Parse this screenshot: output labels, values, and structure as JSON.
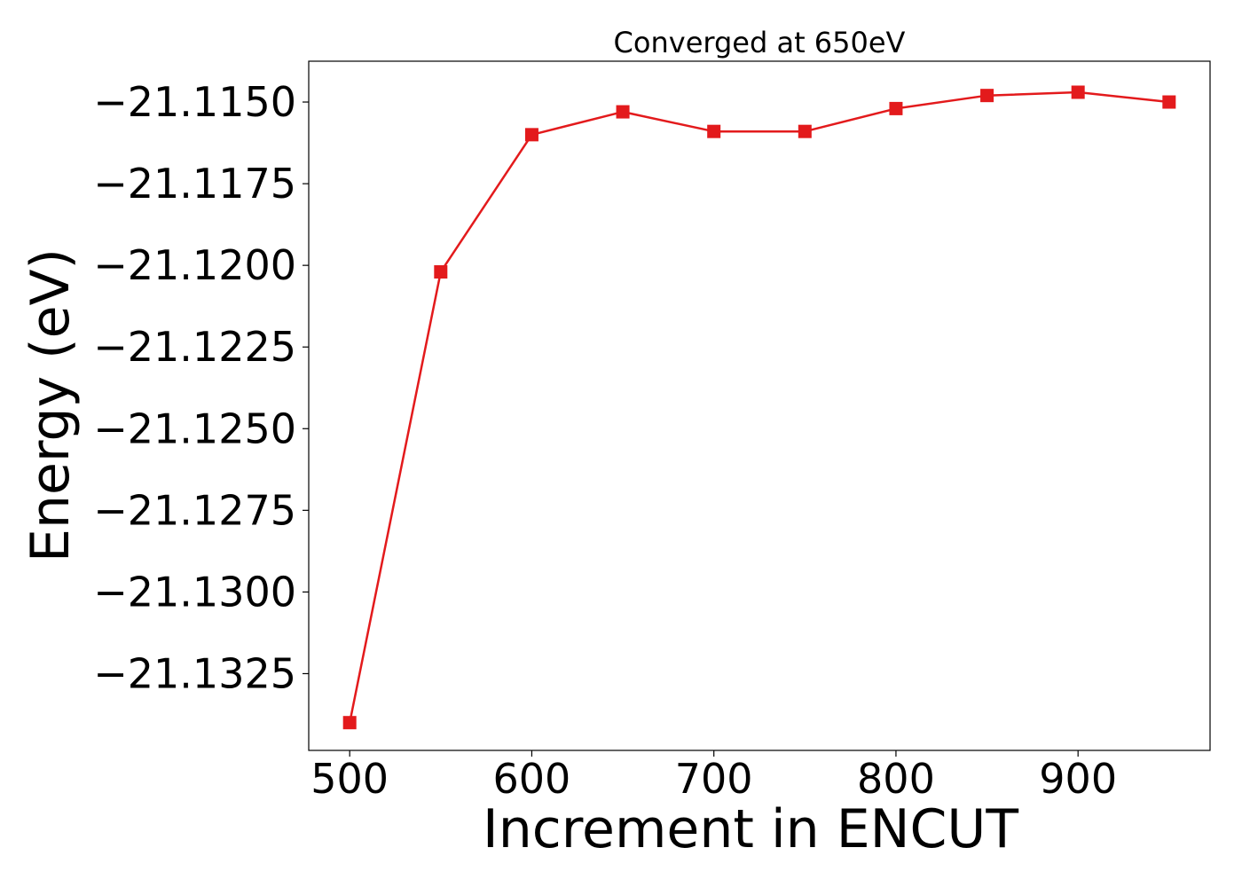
{
  "chart_data": {
    "type": "line",
    "title": "Converged at 650eV",
    "xlabel": "Increment in ENCUT",
    "ylabel": "Energy (eV)",
    "x": [
      500,
      550,
      600,
      650,
      700,
      750,
      800,
      850,
      900,
      950
    ],
    "series": [
      {
        "values": [
          -21.134,
          -21.1202,
          -21.116,
          -21.1153,
          -21.1159,
          -21.1159,
          -21.1152,
          -21.1148,
          -21.1147,
          -21.115
        ],
        "color": "#e31a1c",
        "marker": "square"
      }
    ],
    "xticks": [
      500,
      600,
      700,
      800,
      900
    ],
    "xtick_labels": [
      "500",
      "600",
      "700",
      "800",
      "900"
    ],
    "yticks": [
      -21.1325,
      -21.13,
      -21.1275,
      -21.125,
      -21.1225,
      -21.12,
      -21.1175,
      -21.115
    ],
    "ytick_labels": [
      "−21.1325",
      "−21.1300",
      "−21.1275",
      "−21.1250",
      "−21.1225",
      "−21.1200",
      "−21.1175",
      "−21.1150"
    ],
    "xlim": [
      477.5,
      972.5
    ],
    "ylim": [
      -21.13485,
      -21.11375
    ],
    "grid": false,
    "legend": "none"
  }
}
